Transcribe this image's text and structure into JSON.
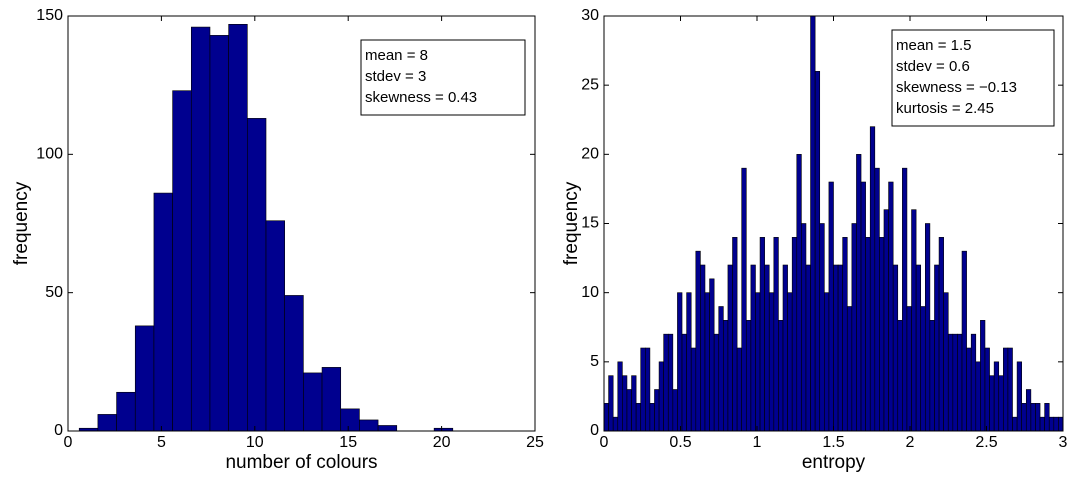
{
  "chart_data": [
    {
      "type": "histogram",
      "xlabel": "number of colours",
      "ylabel": "frequency",
      "bins": [
        0.6,
        1.6,
        2.6,
        3.6,
        4.6,
        5.6,
        6.6,
        7.6,
        8.6,
        9.6,
        10.6,
        11.6,
        12.6,
        13.6,
        14.6,
        15.6,
        16.6,
        17.6,
        18.6,
        19.6,
        20.6
      ],
      "counts": [
        1,
        6,
        14,
        38,
        86,
        123,
        146,
        143,
        147,
        113,
        76,
        49,
        21,
        23,
        8,
        4,
        2,
        0,
        0,
        1
      ],
      "color": "#00008f",
      "xlim": [
        0,
        25
      ],
      "xticks": [
        0,
        5,
        10,
        15,
        20,
        25
      ],
      "ylim": [
        0,
        150
      ],
      "yticks": [
        0,
        50,
        100,
        150
      ],
      "annotations": [
        "mean = 8",
        "stdev = 3",
        "skewness = 0.43"
      ]
    },
    {
      "type": "histogram",
      "xlabel": "entropy",
      "ylabel": "frequency",
      "bins": [
        0,
        0.03,
        0.06,
        0.09,
        0.12,
        0.15,
        0.18,
        0.21,
        0.24,
        0.27,
        0.3,
        0.33,
        0.36,
        0.39,
        0.42,
        0.45,
        0.48,
        0.51,
        0.54,
        0.57,
        0.6,
        0.63,
        0.66,
        0.69,
        0.72,
        0.75,
        0.78,
        0.81,
        0.84,
        0.87,
        0.9,
        0.93,
        0.96,
        0.99,
        1.02,
        1.05,
        1.08,
        1.11,
        1.14,
        1.17,
        1.2,
        1.23,
        1.26,
        1.29,
        1.32,
        1.35,
        1.38,
        1.41,
        1.44,
        1.47,
        1.5,
        1.53,
        1.56,
        1.59,
        1.62,
        1.65,
        1.68,
        1.71,
        1.74,
        1.77,
        1.8,
        1.83,
        1.86,
        1.89,
        1.92,
        1.95,
        1.98,
        2.01,
        2.04,
        2.07,
        2.1,
        2.13,
        2.16,
        2.19,
        2.22,
        2.25,
        2.28,
        2.31,
        2.34,
        2.37,
        2.4,
        2.43,
        2.46,
        2.49,
        2.52,
        2.55,
        2.58,
        2.61,
        2.64,
        2.67,
        2.7,
        2.73,
        2.76,
        2.79,
        2.82,
        2.85,
        2.88,
        2.91,
        2.94,
        2.97,
        3
      ],
      "counts": [
        2,
        4,
        1,
        5,
        4,
        3,
        4,
        2,
        6,
        6,
        2,
        3,
        5,
        7,
        7,
        3,
        10,
        7,
        10,
        6,
        13,
        12,
        10,
        11,
        7,
        9,
        8,
        12,
        14,
        6,
        19,
        8,
        12,
        10,
        14,
        12,
        10,
        14,
        8,
        12,
        10,
        14,
        20,
        15,
        12,
        30,
        26,
        15,
        10,
        18,
        12,
        12,
        14,
        9,
        15,
        20,
        18,
        14,
        22,
        19,
        14,
        16,
        18,
        12,
        8,
        19,
        9,
        16,
        12,
        9,
        15,
        8,
        12,
        14,
        10,
        7,
        7,
        7,
        13,
        6,
        7,
        5,
        8,
        6,
        4,
        5,
        4,
        6,
        6,
        1,
        5,
        2,
        3,
        2,
        2,
        1,
        2,
        1,
        1,
        1
      ],
      "color": "#00008f",
      "xlim": [
        0,
        3
      ],
      "xticks": [
        0,
        0.5,
        1,
        1.5,
        2,
        2.5,
        3
      ],
      "ylim": [
        0,
        30
      ],
      "yticks": [
        0,
        5,
        10,
        15,
        20,
        25,
        30
      ],
      "annotations": [
        "mean = 1.5",
        "stdev = 0.6",
        "skewness = −0.13",
        "kurtosis = 2.45"
      ]
    }
  ]
}
